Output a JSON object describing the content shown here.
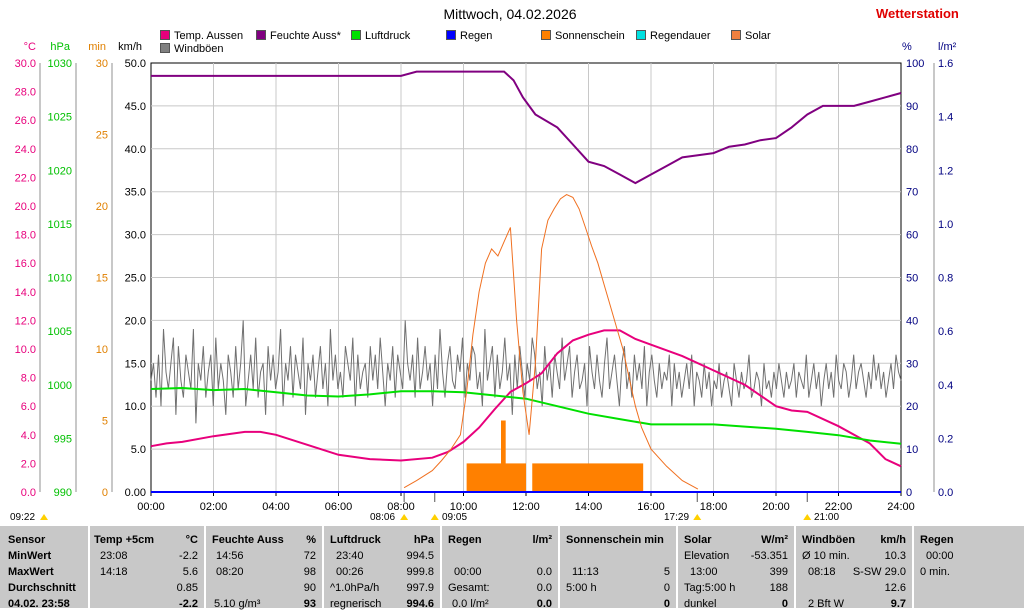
{
  "header": {
    "title": "Mittwoch, 04.02.2026",
    "station": "Wetterstation"
  },
  "legend": [
    {
      "label": "Temp. Aussen",
      "color": "#e8007c"
    },
    {
      "label": "Feuchte Auss*",
      "color": "#800080"
    },
    {
      "label": "Luftdruck",
      "color": "#00e000"
    },
    {
      "label": "Regen",
      "color": "#0000ff"
    },
    {
      "label": "Sonnenschein",
      "color": "#ff8000"
    },
    {
      "label": "Regendauer",
      "color": "#00e0e0"
    },
    {
      "label": "Solar",
      "color": "#f08040"
    },
    {
      "label": "Windböen",
      "color": "#808080"
    }
  ],
  "axes": {
    "temp": {
      "unit": "°C",
      "ticks": [
        "0.0",
        "2.0",
        "4.0",
        "6.0",
        "8.0",
        "10.0",
        "12.0",
        "14.0",
        "16.0",
        "18.0",
        "20.0",
        "22.0",
        "24.0",
        "26.0",
        "28.0",
        "30.0"
      ],
      "color": "#e8007c"
    },
    "pressure": {
      "unit": "hPa",
      "ticks": [
        "990",
        "995",
        "1000",
        "1005",
        "1010",
        "1015",
        "1020",
        "1025",
        "1030"
      ],
      "color": "#00c000"
    },
    "minutes": {
      "unit": "min",
      "ticks": [
        "0",
        "5",
        "10",
        "15",
        "20",
        "25",
        "30"
      ],
      "color": "#e08000"
    },
    "wind": {
      "unit": "km/h",
      "ticks": [
        "0.00",
        "5.0",
        "10.0",
        "15.0",
        "20.0",
        "25.0",
        "30.0",
        "35.0",
        "40.0",
        "45.0",
        "50.0"
      ],
      "color": "#000000"
    },
    "humidity": {
      "unit": "%",
      "ticks": [
        "0",
        "10",
        "20",
        "30",
        "40",
        "50",
        "60",
        "70",
        "80",
        "90",
        "100"
      ],
      "color": "#000080"
    },
    "rain": {
      "unit": "l/m²",
      "ticks": [
        "0.0",
        "0.2",
        "0.4",
        "0.6",
        "0.8",
        "1.0",
        "1.2",
        "1.4",
        "1.6"
      ],
      "color": "#000080"
    },
    "time": {
      "ticks": [
        "00:00",
        "02:00",
        "04:00",
        "06:00",
        "08:00",
        "10:00",
        "12:00",
        "14:00",
        "16:00",
        "18:00",
        "20:00",
        "22:00",
        "24:00"
      ]
    }
  },
  "events": {
    "moonrise": "09:22",
    "sunrise": "08:06",
    "noon_mark": "09:05",
    "sunset": "17:29",
    "moonset": "21:00"
  },
  "chart_data": {
    "type": "line",
    "x_unit": "hour",
    "xlim": [
      0,
      24
    ],
    "series": [
      {
        "name": "Temp. Aussen",
        "axis": "temp",
        "ylim": [
          0,
          30
        ],
        "x": [
          0,
          0.5,
          1,
          2,
          3,
          3.5,
          4,
          5,
          6,
          7,
          8,
          9,
          9.5,
          10,
          10.5,
          11,
          11.5,
          12,
          12.5,
          13,
          13.5,
          14,
          14.5,
          15,
          15.5,
          16,
          17,
          18,
          19,
          20,
          20.5,
          21,
          22,
          23,
          23.5,
          24
        ],
        "y": [
          3.2,
          3.4,
          3.5,
          3.9,
          4.2,
          4.2,
          4.0,
          3.3,
          2.6,
          2.3,
          2.2,
          2.4,
          2.8,
          3.5,
          4.5,
          5.8,
          7.0,
          7.6,
          8.3,
          9.7,
          10.6,
          11.0,
          11.3,
          11.3,
          10.7,
          10.3,
          9.5,
          8.5,
          7.5,
          6.0,
          5.7,
          5.6,
          4.6,
          3.4,
          2.3,
          1.8
        ]
      },
      {
        "name": "Feuchte Auss*",
        "axis": "humidity",
        "ylim": [
          0,
          100
        ],
        "x": [
          0,
          2,
          4,
          6,
          8,
          8.5,
          9,
          10,
          11,
          11.3,
          11.6,
          11.9,
          12.3,
          13,
          13.5,
          14,
          14.5,
          15,
          15.5,
          16,
          16.5,
          17,
          17.5,
          18,
          18.5,
          19,
          19.5,
          20,
          20.5,
          21,
          21.5,
          22,
          22.5,
          23,
          23.5,
          24
        ],
        "y": [
          97,
          97,
          97,
          97,
          97,
          98,
          98,
          98,
          98,
          98,
          96,
          92,
          88,
          85,
          81,
          77,
          76,
          74,
          72,
          74,
          76,
          78,
          78.5,
          79,
          80.5,
          81,
          82,
          82.5,
          85,
          88,
          90,
          90,
          90,
          91,
          92,
          93
        ]
      },
      {
        "name": "Luftdruck",
        "axis": "pressure",
        "ylim": [
          990,
          1030
        ],
        "x": [
          0,
          1,
          2,
          3,
          4,
          5,
          6,
          7,
          8,
          9,
          10,
          11,
          12,
          13,
          14,
          15,
          16,
          17,
          18,
          19,
          20,
          21,
          22,
          23,
          24
        ],
        "y": [
          999.6,
          999.7,
          999.5,
          999.6,
          999.3,
          999.0,
          998.9,
          999.1,
          999.4,
          999.4,
          999.3,
          999.0,
          998.7,
          998.0,
          997.3,
          996.8,
          996.3,
          996.3,
          996.3,
          996.1,
          995.9,
          995.6,
          995.3,
          994.8,
          994.5
        ]
      },
      {
        "name": "Solar",
        "axis": "minutes",
        "ylim": [
          0,
          30
        ],
        "x": [
          8.1,
          8.5,
          9,
          9.3,
          9.6,
          9.9,
          10.1,
          10.3,
          10.5,
          10.7,
          10.9,
          11.1,
          11.3,
          11.5,
          11.7,
          11.9,
          12.1,
          12.3,
          12.5,
          12.7,
          12.9,
          13.1,
          13.3,
          13.5,
          13.7,
          13.9,
          14.1,
          14.3,
          14.5,
          14.7,
          14.9,
          15.1,
          15.3,
          15.5,
          15.7,
          16,
          16.5,
          17,
          17.5
        ],
        "y": [
          0.3,
          0.8,
          1.5,
          2.2,
          3.0,
          4.0,
          7.0,
          11.0,
          14.0,
          16.0,
          17.0,
          16.5,
          17.5,
          18.5,
          12.0,
          7.0,
          4.0,
          9.0,
          17.0,
          19.0,
          19.8,
          20.5,
          20.8,
          20.6,
          19.8,
          18.5,
          17.2,
          16.0,
          14.5,
          13.0,
          11.5,
          10.0,
          8.0,
          6.0,
          4.5,
          3.0,
          1.8,
          0.8,
          0.2
        ]
      },
      {
        "name": "Regen",
        "axis": "rain",
        "ylim": [
          0,
          1.6
        ],
        "x": [
          0,
          24
        ],
        "y": [
          0,
          0
        ]
      },
      {
        "name": "Sonnenschein",
        "axis": "minutes",
        "ylim": [
          0,
          30
        ],
        "type": "bar",
        "bars": [
          {
            "from": 10.1,
            "to": 12.0,
            "value": 2.0
          },
          {
            "from": 11.2,
            "to": 11.35,
            "value": 5.0
          },
          {
            "from": 12.2,
            "to": 15.75,
            "value": 2.0
          }
        ]
      },
      {
        "name": "Windböen",
        "axis": "wind",
        "ylim": [
          0,
          50
        ],
        "type": "gust",
        "y": [
          13,
          15,
          11,
          16,
          10,
          19,
          14,
          12,
          15,
          18,
          9,
          17,
          13,
          11,
          16,
          14,
          12,
          19,
          8,
          15,
          13,
          17,
          11,
          14,
          16,
          10,
          18,
          12,
          15,
          13,
          9,
          16,
          14,
          11,
          17,
          12,
          15,
          20,
          10,
          13,
          16,
          12,
          18,
          11,
          14,
          15,
          9,
          17,
          13,
          16,
          12,
          14,
          19,
          10,
          15,
          13,
          17,
          11,
          16,
          14,
          12,
          18,
          9,
          15,
          13,
          16,
          11,
          14,
          17,
          12,
          15,
          10,
          19,
          13,
          16,
          12,
          14,
          11,
          17,
          15,
          13,
          18,
          10,
          16,
          12,
          14,
          15,
          11,
          17,
          13,
          16,
          12,
          18,
          14,
          10,
          15,
          13,
          17,
          11,
          16,
          14,
          12,
          20,
          15,
          13,
          16,
          11,
          18,
          12,
          14,
          17,
          13,
          15,
          10,
          16,
          12,
          19,
          14,
          11,
          15,
          17,
          13,
          12,
          16,
          14,
          18,
          11,
          15,
          13,
          17,
          16,
          12,
          14,
          10,
          19,
          13,
          15,
          17,
          11,
          16,
          12,
          14,
          18,
          13,
          15,
          9,
          16,
          12,
          17,
          14,
          11,
          15,
          13,
          18,
          16,
          12,
          14,
          10,
          17,
          13,
          15,
          11,
          16,
          14,
          12,
          18,
          13,
          15,
          17,
          11,
          14,
          16,
          12,
          13,
          15,
          10,
          17,
          14,
          12,
          16,
          13,
          11,
          15,
          18,
          12,
          14,
          16,
          13,
          10,
          15,
          17,
          12,
          14,
          11,
          16,
          13,
          15,
          12,
          17,
          10,
          14,
          16,
          13,
          11,
          15,
          12,
          14,
          13,
          16,
          10,
          15,
          12,
          14,
          11,
          13,
          15,
          12,
          16,
          10,
          14,
          13,
          11,
          15,
          12,
          14,
          10,
          13,
          12,
          15,
          11,
          13,
          14,
          12,
          10,
          15,
          13,
          11,
          14,
          12,
          13,
          16,
          11,
          12,
          14,
          13,
          10,
          15,
          12,
          13,
          11,
          14,
          12,
          15,
          13,
          11,
          14,
          12,
          13,
          15,
          11,
          14,
          13,
          12,
          16,
          11,
          13,
          15,
          12,
          14,
          10,
          13,
          15,
          12,
          14,
          11,
          16,
          13,
          12,
          15,
          14,
          11,
          13,
          16,
          12,
          14,
          15,
          13,
          11,
          14,
          12,
          16,
          13,
          15,
          12,
          14,
          11,
          13,
          15,
          12,
          16,
          14,
          13
        ]
      }
    ]
  },
  "table": {
    "sensor": {
      "header": "Sensor",
      "rows": [
        "MinWert",
        "MaxWert",
        "Durchschnitt",
        "04.02. 23:58"
      ]
    },
    "temp": {
      "header": "Temp +5cm",
      "unit": "°C",
      "rows": [
        [
          "23:08",
          "-2.2"
        ],
        [
          "14:18",
          "5.6"
        ],
        [
          "",
          "0.85"
        ],
        [
          "",
          "-2.2"
        ]
      ]
    },
    "feuchte": {
      "header": "Feuchte Auss",
      "unit": "%",
      "rows": [
        [
          "14:56",
          "72"
        ],
        [
          "08:20",
          "98"
        ],
        [
          "",
          "90"
        ],
        [
          "5.10 g/m³",
          "93"
        ]
      ]
    },
    "luftdruck": {
      "header": "Luftdruck",
      "unit": "hPa",
      "rows": [
        [
          "23:40",
          "994.5"
        ],
        [
          "00:26",
          "999.8"
        ],
        [
          "^1.0hPa/h",
          "997.9"
        ],
        [
          "regnerisch",
          "994.6"
        ]
      ]
    },
    "regen": {
      "header": "Regen",
      "unit": "l/m²",
      "rows": [
        [
          "",
          ""
        ],
        [
          "00:00",
          "0.0"
        ],
        [
          "Gesamt:",
          "0.0"
        ],
        [
          "0.0 l/m²",
          "0.0"
        ]
      ]
    },
    "sonne": {
      "header": "Sonnenschein min",
      "rows": [
        [
          "",
          ""
        ],
        [
          "11:13",
          "5"
        ],
        [
          "5:00 h",
          "0"
        ],
        [
          "",
          "0"
        ]
      ]
    },
    "solar": {
      "header": "Solar",
      "unit": "W/m²",
      "rows": [
        [
          "Elevation",
          "-53.351"
        ],
        [
          "13:00",
          "399"
        ],
        [
          "Tag:5:00 h",
          "188"
        ],
        [
          "dunkel",
          "0"
        ]
      ]
    },
    "wind": {
      "header": "Windböen",
      "unit": "km/h",
      "rows": [
        [
          "Ø 10 min.",
          "10.3"
        ],
        [
          "08:18",
          "S-SW 29.0"
        ],
        [
          "",
          "12.6"
        ],
        [
          "2 Bft W",
          "9.7"
        ]
      ]
    },
    "regendauer": {
      "header": "Regen",
      "rows": [
        [
          "00:00",
          ""
        ],
        [
          "0 min.",
          ""
        ],
        [
          "",
          ""
        ],
        [
          "",
          ""
        ]
      ]
    }
  }
}
